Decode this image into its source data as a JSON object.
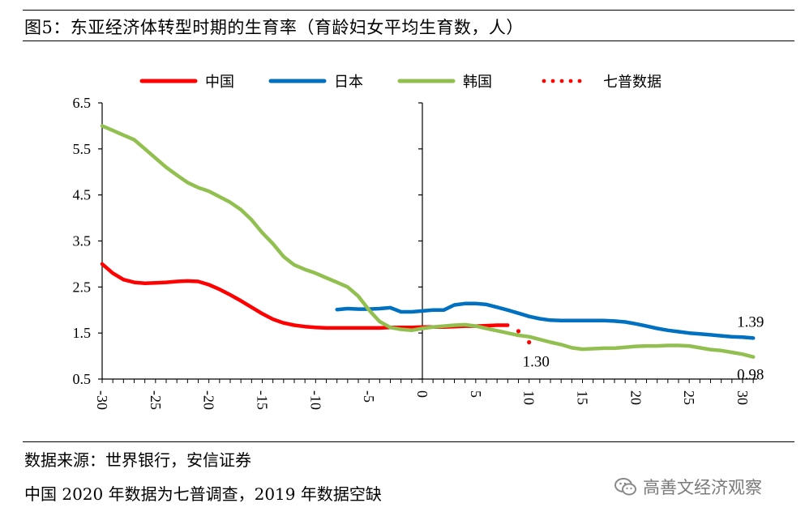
{
  "header": {
    "title": "图5：东亚经济体转型时期的生育率（育龄妇女平均生育数，人）"
  },
  "footer": {
    "source": "数据来源：世界银行，安信证券",
    "note": "中国 2020 年数据为七普调查，2019 年数据空缺",
    "watermark": "高善文经济观察"
  },
  "chart_data": {
    "type": "line",
    "title": "",
    "xlabel": "",
    "ylabel": "",
    "xlim": [
      -30,
      31
    ],
    "ylim": [
      0.5,
      6.5
    ],
    "x_ticks": [
      "-30",
      "-25",
      "-20",
      "-15",
      "-10",
      "-5",
      "0",
      "5",
      "10",
      "15",
      "20",
      "25",
      "30"
    ],
    "y_ticks": [
      "0.5",
      "1.5",
      "2.5",
      "3.5",
      "4.5",
      "5.5",
      "6.5"
    ],
    "legend_position": "top",
    "series": [
      {
        "name": "中国",
        "color": "#ff0000",
        "style": "solid",
        "x": [
          -30,
          -29,
          -28,
          -27,
          -26,
          -25,
          -24,
          -23,
          -22,
          -21,
          -20,
          -19,
          -18,
          -17,
          -16,
          -15,
          -14,
          -13,
          -12,
          -11,
          -10,
          -9,
          -8,
          -7,
          -6,
          -5,
          -4,
          -3,
          -2,
          -1,
          0,
          1,
          2,
          3,
          4,
          5,
          6,
          7,
          8
        ],
        "y": [
          3.0,
          2.8,
          2.66,
          2.6,
          2.58,
          2.59,
          2.6,
          2.62,
          2.63,
          2.62,
          2.55,
          2.45,
          2.33,
          2.2,
          2.06,
          1.92,
          1.8,
          1.72,
          1.67,
          1.64,
          1.62,
          1.61,
          1.61,
          1.61,
          1.61,
          1.61,
          1.61,
          1.62,
          1.62,
          1.62,
          1.63,
          1.63,
          1.63,
          1.64,
          1.65,
          1.65,
          1.66,
          1.67,
          1.67
        ]
      },
      {
        "name": "日本",
        "color": "#0070c0",
        "style": "solid",
        "x": [
          -8,
          -7,
          -6,
          -5,
          -4,
          -3,
          -2,
          -1,
          0,
          1,
          2,
          3,
          4,
          5,
          6,
          7,
          8,
          9,
          10,
          11,
          12,
          13,
          14,
          15,
          16,
          17,
          18,
          19,
          20,
          21,
          22,
          23,
          24,
          25,
          26,
          27,
          28,
          29,
          30,
          31
        ],
        "y": [
          2.01,
          2.03,
          2.02,
          2.02,
          2.03,
          2.05,
          1.96,
          1.96,
          1.98,
          2.0,
          2.0,
          2.11,
          2.14,
          2.14,
          2.12,
          2.06,
          2.0,
          1.93,
          1.86,
          1.81,
          1.78,
          1.77,
          1.77,
          1.77,
          1.77,
          1.77,
          1.76,
          1.74,
          1.7,
          1.65,
          1.6,
          1.56,
          1.53,
          1.5,
          1.48,
          1.46,
          1.44,
          1.42,
          1.41,
          1.39
        ]
      },
      {
        "name": "韩国",
        "color": "#92c050",
        "style": "solid",
        "x": [
          -30,
          -29,
          -28,
          -27,
          -26,
          -25,
          -24,
          -23,
          -22,
          -21,
          -20,
          -19,
          -18,
          -17,
          -16,
          -15,
          -14,
          -13,
          -12,
          -11,
          -10,
          -9,
          -8,
          -7,
          -6,
          -5,
          -4,
          -3,
          -2,
          -1,
          0,
          1,
          2,
          3,
          4,
          5,
          6,
          7,
          8,
          9,
          10,
          11,
          12,
          13,
          14,
          15,
          16,
          17,
          18,
          19,
          20,
          21,
          22,
          23,
          24,
          25,
          26,
          27,
          28,
          29,
          30,
          31
        ],
        "y": [
          6.0,
          5.9,
          5.8,
          5.7,
          5.5,
          5.3,
          5.1,
          4.93,
          4.77,
          4.66,
          4.58,
          4.46,
          4.34,
          4.18,
          3.96,
          3.68,
          3.44,
          3.16,
          2.98,
          2.88,
          2.8,
          2.7,
          2.6,
          2.5,
          2.3,
          2.0,
          1.75,
          1.62,
          1.58,
          1.56,
          1.6,
          1.63,
          1.65,
          1.67,
          1.68,
          1.65,
          1.6,
          1.55,
          1.5,
          1.45,
          1.42,
          1.36,
          1.3,
          1.25,
          1.18,
          1.15,
          1.16,
          1.17,
          1.17,
          1.19,
          1.21,
          1.22,
          1.22,
          1.23,
          1.23,
          1.22,
          1.18,
          1.14,
          1.12,
          1.08,
          1.04,
          0.98
        ]
      },
      {
        "name": "七普数据",
        "color": "#ff0000",
        "style": "dotted",
        "x": [
          9,
          10
        ],
        "y": [
          1.54,
          1.3
        ]
      }
    ],
    "annotations": [
      {
        "text": "1.39",
        "x": 31,
        "y": 1.39
      },
      {
        "text": "1.30",
        "x": 10,
        "y": 1.3
      },
      {
        "text": "0.98",
        "x": 31,
        "y": 0.98
      }
    ]
  }
}
